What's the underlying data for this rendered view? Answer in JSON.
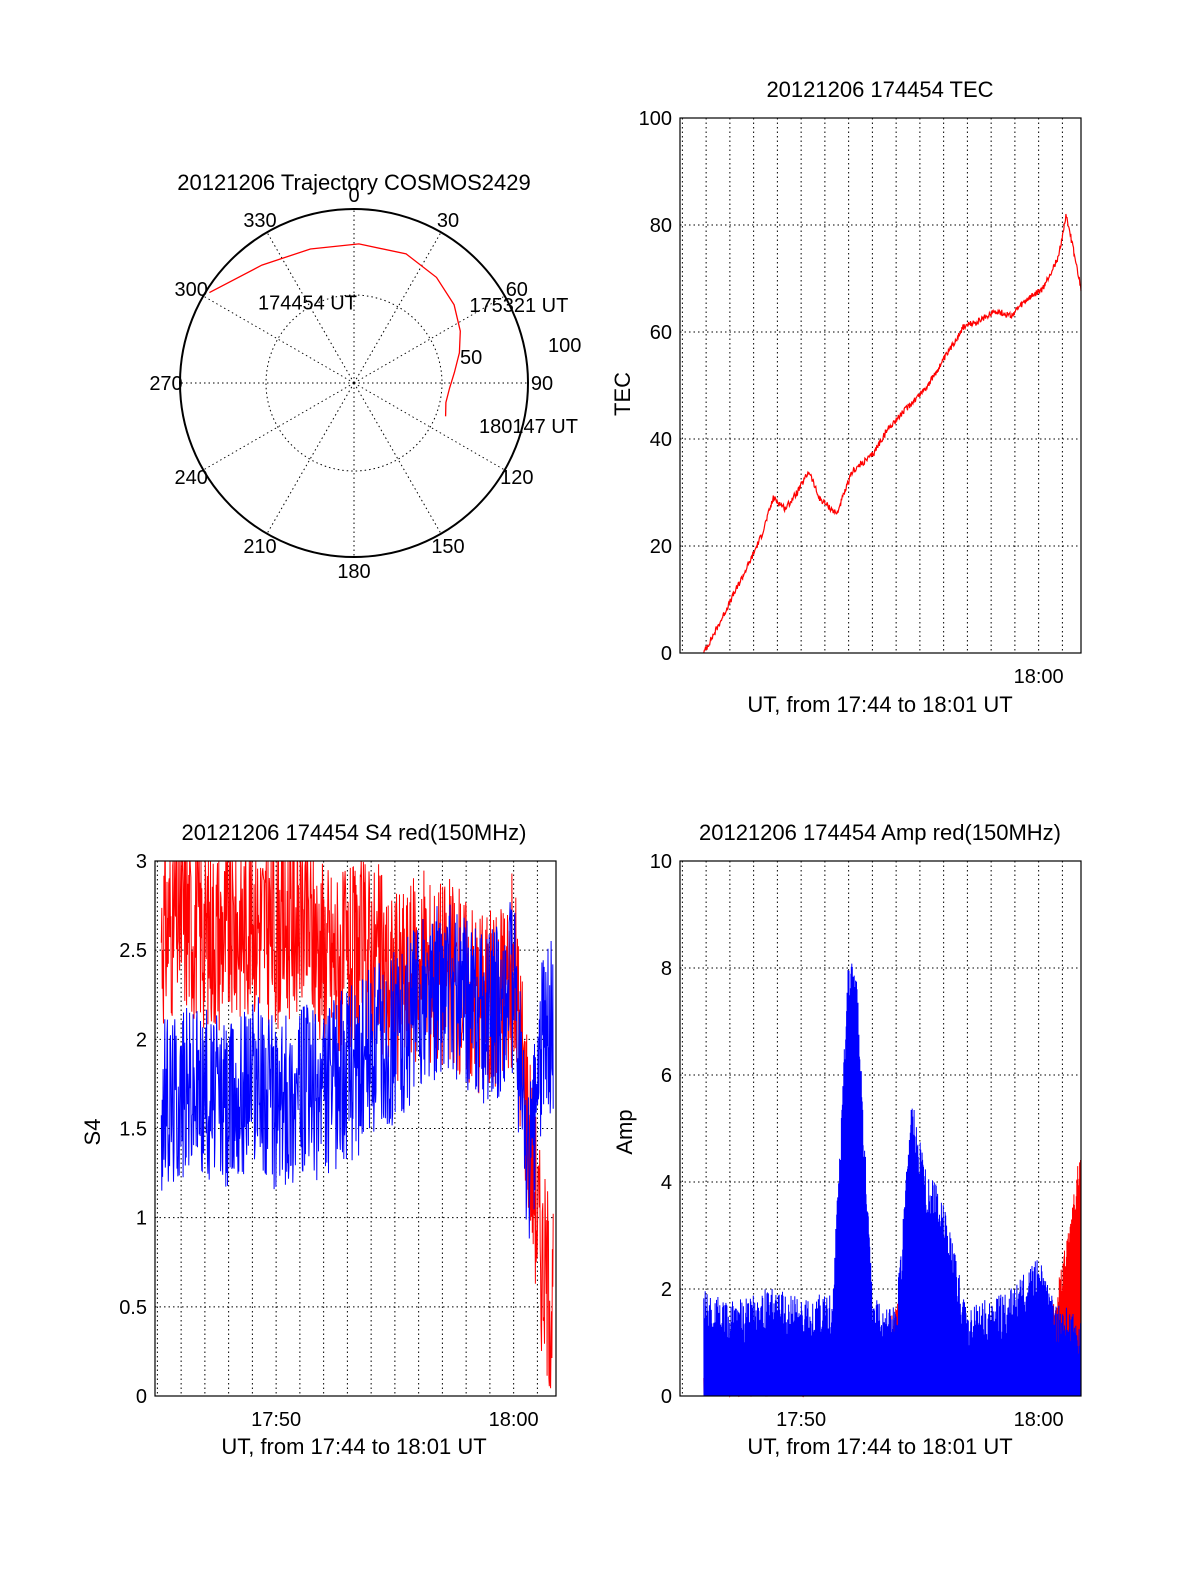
{
  "figure_date": "20121206",
  "chart_data": [
    {
      "id": "polar",
      "type": "scatter",
      "projection": "polar",
      "title": "20121206 Trajectory COSMOS2429",
      "azimuth_ticks": [
        "0",
        "30",
        "60",
        "90",
        "120",
        "150",
        "180",
        "210",
        "240",
        "270",
        "300",
        "330"
      ],
      "ring_labels": [
        "50",
        "100"
      ],
      "color": "#ff0000",
      "track": {
        "azimuth_deg": [
          302,
          322,
          342,
          2,
          22,
          38,
          52,
          64,
          74,
          84,
          93,
          102,
          110
        ],
        "zenith_deg": [
          98,
          86,
          81,
          80,
          80,
          77,
          73,
          68,
          63,
          58,
          55,
          54,
          56
        ]
      },
      "annotations": [
        {
          "text": "174454 UT",
          "azimuth_deg": 310,
          "zenith_deg": 72
        },
        {
          "text": "175321 UT",
          "azimuth_deg": 56,
          "zenith_deg": 80
        },
        {
          "text": "180147 UT",
          "azimuth_deg": 109,
          "zenith_deg": 76
        }
      ]
    },
    {
      "id": "tec",
      "type": "line",
      "title": "20121206 174454 TEC",
      "xlabel": "UT, from 17:44 to 18:01 UT",
      "ylabel": "TEC",
      "xlim": [
        "17:44:54",
        "18:01:47"
      ],
      "ylim": [
        0,
        100
      ],
      "yticks": [
        0,
        20,
        40,
        60,
        80,
        100
      ],
      "xticks": [
        {
          "t": "18:00:00",
          "label": "18:00"
        }
      ],
      "grid": true,
      "color": "#ff0000",
      "x": [
        "17:45:54",
        "17:46:30",
        "17:47:10",
        "17:47:50",
        "17:48:20",
        "17:48:50",
        "17:49:20",
        "17:49:50",
        "17:50:20",
        "17:50:45",
        "17:51:30",
        "17:52:10",
        "17:53:00",
        "17:53:40",
        "17:54:30",
        "17:55:20",
        "17:56:10",
        "17:56:50",
        "17:57:30",
        "17:58:10",
        "17:58:50",
        "17:59:30",
        "18:00:10",
        "18:00:50",
        "18:01:10",
        "18:01:47"
      ],
      "y": [
        0,
        5,
        11,
        17,
        22,
        29,
        27,
        30,
        34,
        29,
        26,
        34,
        37,
        42,
        46,
        50,
        56,
        61,
        62,
        64,
        63,
        66,
        68,
        74,
        82,
        68
      ]
    },
    {
      "id": "s4",
      "type": "line",
      "title": "20121206 174454 S4 red(150MHz)",
      "xlabel": "UT, from 17:44 to 18:01 UT",
      "ylabel": "S4",
      "xlim": [
        "17:44:54",
        "18:01:47"
      ],
      "ylim": [
        0,
        3
      ],
      "yticks": [
        "0",
        "0.5",
        "1",
        "1.5",
        "2",
        "2.5",
        "3"
      ],
      "xticks": [
        {
          "t": "17:50:00",
          "label": "17:50"
        },
        {
          "t": "18:00:00",
          "label": "18:00"
        }
      ],
      "grid": true,
      "series": [
        {
          "color": "#ff0000",
          "x": [
            "17:45:10",
            "17:46:00",
            "17:47:00",
            "17:48:00",
            "17:49:00",
            "17:50:00",
            "17:51:00",
            "17:52:00",
            "17:53:00",
            "17:54:00",
            "17:55:00",
            "17:56:00",
            "17:57:00",
            "17:58:00",
            "17:59:00",
            "18:00:00",
            "18:00:40",
            "18:01:10",
            "18:01:40"
          ],
          "y": [
            2.6,
            2.7,
            2.6,
            2.6,
            2.7,
            2.6,
            2.7,
            2.5,
            2.4,
            2.5,
            2.3,
            2.4,
            2.4,
            2.3,
            2.2,
            2.4,
            1.5,
            0.8,
            0.5
          ]
        },
        {
          "color": "#0000ff",
          "x": [
            "17:45:10",
            "17:46:00",
            "17:47:00",
            "17:48:00",
            "17:49:00",
            "17:50:00",
            "17:51:00",
            "17:52:00",
            "17:53:00",
            "17:54:00",
            "17:55:00",
            "17:56:00",
            "17:57:00",
            "17:58:00",
            "17:59:00",
            "18:00:00",
            "18:00:40",
            "18:01:10",
            "18:01:40"
          ],
          "y": [
            1.6,
            1.7,
            1.7,
            1.6,
            1.8,
            1.6,
            1.7,
            1.7,
            1.8,
            1.9,
            2.0,
            2.2,
            2.3,
            2.2,
            2.1,
            2.3,
            1.2,
            2.0,
            2.1
          ]
        }
      ]
    },
    {
      "id": "amp",
      "type": "line",
      "title": "20121206 174454 Amp red(150MHz)",
      "xlabel": "UT, from 17:44 to 18:01 UT",
      "ylabel": "Amp",
      "xlim": [
        "17:44:54",
        "18:01:47"
      ],
      "ylim": [
        0,
        10
      ],
      "yticks": [
        0,
        2,
        4,
        6,
        8,
        10
      ],
      "xticks": [
        {
          "t": "17:50:00",
          "label": "17:50"
        },
        {
          "t": "18:00:00",
          "label": "18:00"
        }
      ],
      "grid": true,
      "series": [
        {
          "color": "#ff0000",
          "x": [
            "17:45:54",
            "17:50:00",
            "17:52:00",
            "17:52:20",
            "17:53:00",
            "17:54:20",
            "17:55:30",
            "17:58:00",
            "18:00:00",
            "18:00:40",
            "18:01:20",
            "18:01:47"
          ],
          "y": [
            0.2,
            0.3,
            0.4,
            0.9,
            0.3,
            1.8,
            0.5,
            0.4,
            0.5,
            1.5,
            3.0,
            4.5
          ]
        },
        {
          "color": "#0000ff",
          "x": [
            "17:45:54",
            "17:47:00",
            "17:48:30",
            "17:50:00",
            "17:51:20",
            "17:52:00",
            "17:52:20",
            "17:53:00",
            "17:54:00",
            "17:54:40",
            "17:55:20",
            "17:55:50",
            "17:57:00",
            "17:59:00",
            "18:00:00",
            "18:00:40",
            "18:01:20",
            "18:01:47"
          ],
          "y": [
            1.6,
            1.3,
            1.6,
            1.4,
            1.5,
            7.8,
            7.5,
            1.4,
            1.2,
            5.1,
            3.7,
            3.5,
            1.2,
            1.6,
            2.2,
            1.3,
            1.2,
            1.0
          ]
        }
      ]
    }
  ]
}
